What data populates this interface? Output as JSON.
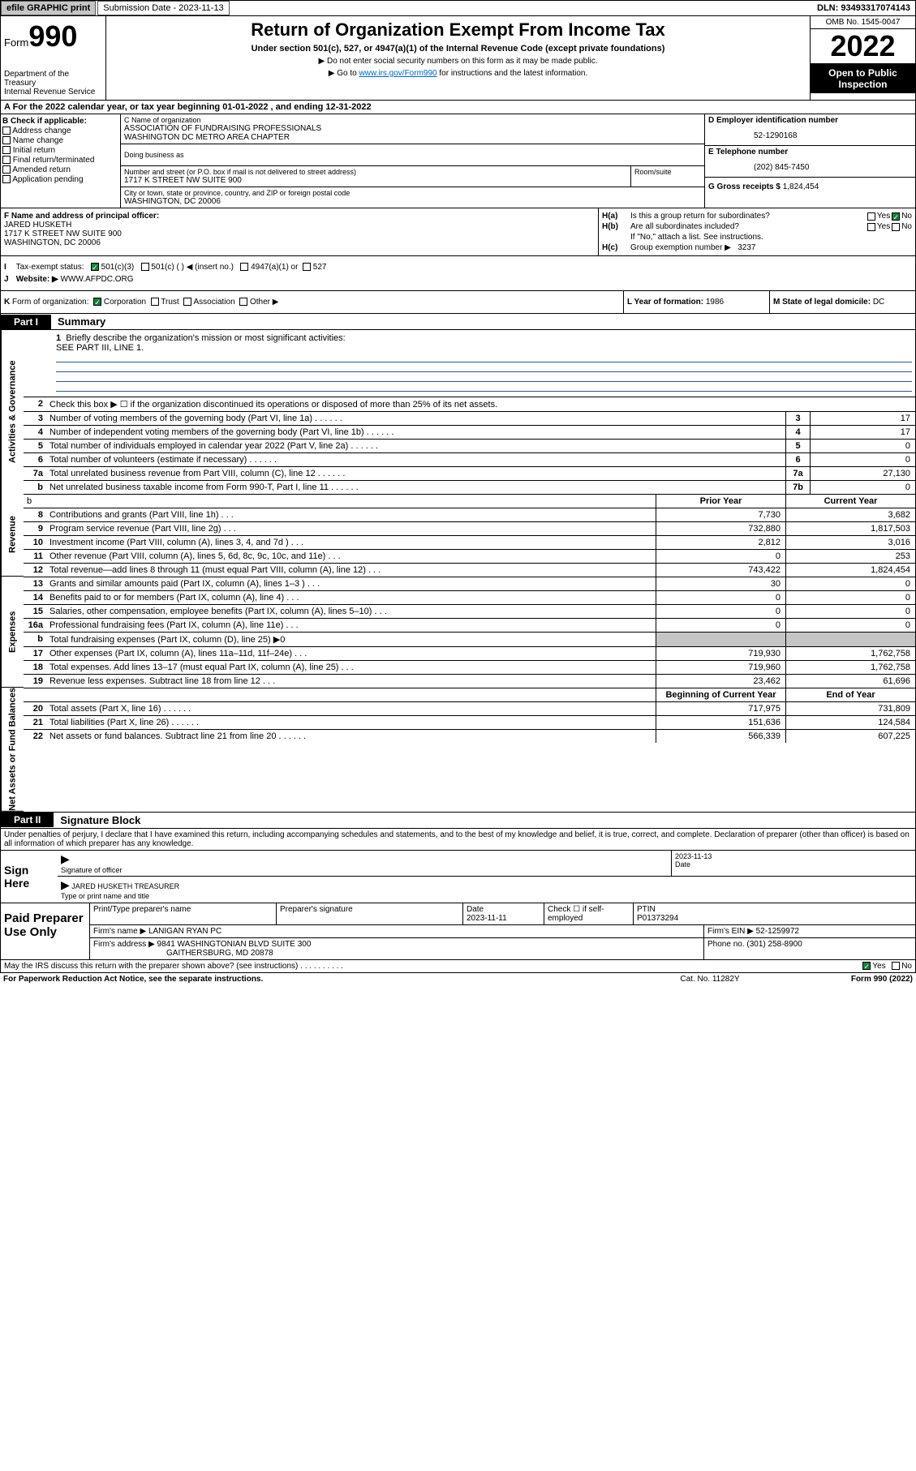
{
  "topbar": {
    "efile": "efile GRAPHIC print",
    "subdate_lbl": "Submission Date - 2023-11-13",
    "dln": "DLN: 93493317074143"
  },
  "header": {
    "form_prefix": "Form",
    "form_num": "990",
    "dept": "Department of the Treasury",
    "irs": "Internal Revenue Service",
    "title": "Return of Organization Exempt From Income Tax",
    "sub": "Under section 501(c), 527, or 4947(a)(1) of the Internal Revenue Code (except private foundations)",
    "note1": "▶ Do not enter social security numbers on this form as it may be made public.",
    "note2_pre": "▶ Go to ",
    "note2_link": "www.irs.gov/Form990",
    "note2_post": " for instructions and the latest information.",
    "omb": "OMB No. 1545-0047",
    "year": "2022",
    "open1": "Open to Public",
    "open2": "Inspection"
  },
  "line_a": "A For the 2022 calendar year, or tax year beginning 01-01-2022    , and ending 12-31-2022",
  "col_b": {
    "hdr": "B Check if applicable:",
    "items": [
      "Address change",
      "Name change",
      "Initial return",
      "Final return/terminated",
      "Amended return",
      "Application pending"
    ]
  },
  "col_c": {
    "name_lbl": "C Name of organization",
    "name1": "ASSOCIATION OF FUNDRAISING PROFESSIONALS",
    "name2": "WASHINGTON DC METRO AREA CHAPTER",
    "dba_lbl": "Doing business as",
    "street_lbl": "Number and street (or P.O. box if mail is not delivered to street address)",
    "street": "1717 K STREET NW SUITE 900",
    "room_lbl": "Room/suite",
    "city_lbl": "City or town, state or province, country, and ZIP or foreign postal code",
    "city": "WASHINGTON, DC  20006"
  },
  "col_d": {
    "ein_lbl": "D Employer identification number",
    "ein": "52-1290168",
    "phone_lbl": "E Telephone number",
    "phone": "(202) 845-7450",
    "gross_lbl": "G Gross receipts $ ",
    "gross": "1,824,454"
  },
  "col_f": {
    "lbl": "F Name and address of principal officer:",
    "name": "JARED HUSKETH",
    "addr1": "1717 K STREET NW SUITE 900",
    "addr2": "WASHINGTON, DC  20006"
  },
  "col_h": {
    "ha_lbl": "H(a)",
    "ha_txt": "Is this a group return for subordinates?",
    "hb_lbl": "H(b)",
    "hb_txt": "Are all subordinates included?",
    "hb_note": "If \"No,\" attach a list. See instructions.",
    "hc_lbl": "H(c)",
    "hc_txt": "Group exemption number ▶",
    "hc_val": "3237",
    "yes": "Yes",
    "no": "No"
  },
  "line_i": {
    "lbl": "I",
    "txt": "Tax-exempt status:",
    "opt1": "501(c)(3)",
    "opt2": "501(c) (   ) ◀ (insert no.)",
    "opt3": "4947(a)(1) or",
    "opt4": "527"
  },
  "line_j": {
    "lbl": "J",
    "txt": "Website: ▶",
    "val": "WWW.AFPDC.ORG"
  },
  "line_k": {
    "lbl": "K",
    "txt": "Form of organization:",
    "opts": [
      "Corporation",
      "Trust",
      "Association",
      "Other ▶"
    ]
  },
  "line_l": {
    "txt": "L Year of formation: ",
    "val": "1986"
  },
  "line_m": {
    "txt": "M State of legal domicile: ",
    "val": "DC"
  },
  "part1": {
    "tab": "Part I",
    "title": "Summary"
  },
  "q1": {
    "n": "1",
    "t": "Briefly describe the organization's mission or most significant activities:",
    "ans": "SEE PART III, LINE 1."
  },
  "vlabels": {
    "gov": "Activities & Governance",
    "rev": "Revenue",
    "exp": "Expenses",
    "net": "Net Assets or Fund Balances"
  },
  "gov_rows": [
    {
      "n": "2",
      "t": "Check this box ▶ ☐  if the organization discontinued its operations or disposed of more than 25% of its net assets.",
      "box": "",
      "val": ""
    },
    {
      "n": "3",
      "t": "Number of voting members of the governing body (Part VI, line 1a)",
      "box": "3",
      "val": "17"
    },
    {
      "n": "4",
      "t": "Number of independent voting members of the governing body (Part VI, line 1b)",
      "box": "4",
      "val": "17"
    },
    {
      "n": "5",
      "t": "Total number of individuals employed in calendar year 2022 (Part V, line 2a)",
      "box": "5",
      "val": "0"
    },
    {
      "n": "6",
      "t": "Total number of volunteers (estimate if necessary)",
      "box": "6",
      "val": "0"
    },
    {
      "n": "7a",
      "t": "Total unrelated business revenue from Part VIII, column (C), line 12",
      "box": "7a",
      "val": "27,130"
    },
    {
      "n": "b",
      "t": "Net unrelated business taxable income from Form 990-T, Part I, line 11",
      "box": "7b",
      "val": "0"
    }
  ],
  "col_hdrs": {
    "prior": "Prior Year",
    "current": "Current Year"
  },
  "rev_rows": [
    {
      "n": "b",
      "t": "",
      "c1": "",
      "c2": "",
      "grey": false,
      "notop": true,
      "hidden": true
    },
    {
      "n": "8",
      "t": "Contributions and grants (Part VIII, line 1h)",
      "c1": "7,730",
      "c2": "3,682"
    },
    {
      "n": "9",
      "t": "Program service revenue (Part VIII, line 2g)",
      "c1": "732,880",
      "c2": "1,817,503"
    },
    {
      "n": "10",
      "t": "Investment income (Part VIII, column (A), lines 3, 4, and 7d )",
      "c1": "2,812",
      "c2": "3,016"
    },
    {
      "n": "11",
      "t": "Other revenue (Part VIII, column (A), lines 5, 6d, 8c, 9c, 10c, and 11e)",
      "c1": "0",
      "c2": "253"
    },
    {
      "n": "12",
      "t": "Total revenue—add lines 8 through 11 (must equal Part VIII, column (A), line 12)",
      "c1": "743,422",
      "c2": "1,824,454"
    }
  ],
  "exp_rows": [
    {
      "n": "13",
      "t": "Grants and similar amounts paid (Part IX, column (A), lines 1–3 )",
      "c1": "30",
      "c2": "0"
    },
    {
      "n": "14",
      "t": "Benefits paid to or for members (Part IX, column (A), line 4)",
      "c1": "0",
      "c2": "0"
    },
    {
      "n": "15",
      "t": "Salaries, other compensation, employee benefits (Part IX, column (A), lines 5–10)",
      "c1": "0",
      "c2": "0"
    },
    {
      "n": "16a",
      "t": "Professional fundraising fees (Part IX, column (A), line 11e)",
      "c1": "0",
      "c2": "0"
    },
    {
      "n": "b",
      "t": "Total fundraising expenses (Part IX, column (D), line 25) ▶0",
      "c1": "",
      "c2": "",
      "grey": true
    },
    {
      "n": "17",
      "t": "Other expenses (Part IX, column (A), lines 11a–11d, 11f–24e)",
      "c1": "719,930",
      "c2": "1,762,758"
    },
    {
      "n": "18",
      "t": "Total expenses. Add lines 13–17 (must equal Part IX, column (A), line 25)",
      "c1": "719,960",
      "c2": "1,762,758"
    },
    {
      "n": "19",
      "t": "Revenue less expenses. Subtract line 18 from line 12",
      "c1": "23,462",
      "c2": "61,696"
    }
  ],
  "net_hdrs": {
    "beg": "Beginning of Current Year",
    "end": "End of Year"
  },
  "net_rows": [
    {
      "n": "20",
      "t": "Total assets (Part X, line 16)",
      "c1": "717,975",
      "c2": "731,809"
    },
    {
      "n": "21",
      "t": "Total liabilities (Part X, line 26)",
      "c1": "151,636",
      "c2": "124,584"
    },
    {
      "n": "22",
      "t": "Net assets or fund balances. Subtract line 21 from line 20",
      "c1": "566,339",
      "c2": "607,225"
    }
  ],
  "part2": {
    "tab": "Part II",
    "title": "Signature Block"
  },
  "sig_text": "Under penalties of perjury, I declare that I have examined this return, including accompanying schedules and statements, and to the best of my knowledge and belief, it is true, correct, and complete. Declaration of preparer (other than officer) is based on all information of which preparer has any knowledge.",
  "sign": {
    "here": "Sign Here",
    "sig_lbl": "Signature of officer",
    "date_lbl": "Date",
    "date_val": "2023-11-13",
    "name": "JARED HUSKETH TREASURER",
    "name_lbl": "Type or print name and title"
  },
  "prep": {
    "left": "Paid Preparer Use Only",
    "r1": {
      "c1": "Print/Type preparer's name",
      "c2": "Preparer's signature",
      "c3": "Date",
      "c3v": "2023-11-11",
      "c4": "Check ☐ if self-employed",
      "c5": "PTIN",
      "c5v": "P01373294"
    },
    "r2": {
      "lbl": "Firm's name    ▶",
      "val": "LANIGAN RYAN PC",
      "einlbl": "Firm's EIN ▶",
      "ein": "52-1259972"
    },
    "r3": {
      "lbl": "Firm's address ▶",
      "val1": "9841 WASHINGTONIAN BLVD SUITE 300",
      "val2": "GAITHERSBURG, MD  20878",
      "phlbl": "Phone no.",
      "ph": "(301) 258-8900"
    }
  },
  "footer": {
    "discuss": "May the IRS discuss this return with the preparer shown above? (see instructions)",
    "yes": "Yes",
    "no": "No",
    "pra": "For Paperwork Reduction Act Notice, see the separate instructions.",
    "cat": "Cat. No. 11282Y",
    "form": "Form 990 (2022)"
  }
}
